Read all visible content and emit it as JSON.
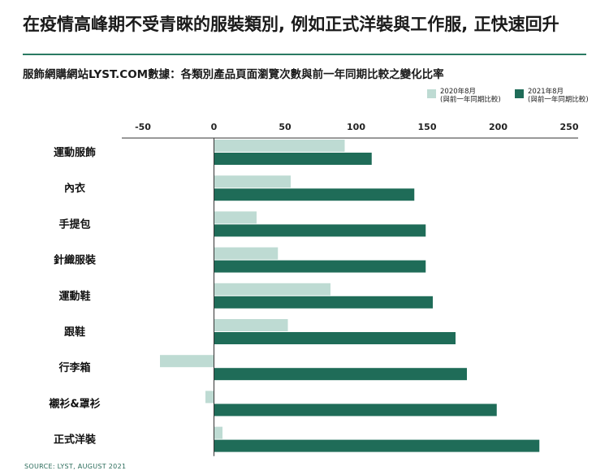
{
  "header": {
    "title": "在疫情高峰期不受青睞的服裝類別, 例如正式洋裝與工作服, 正快速回升",
    "subtitle": "服飾網購網站LYST.COM數據：各類別產品頁面瀏覽次數與前一年同期比較之變化比率"
  },
  "footer": {
    "source": "SOURCE: LYST, AUGUST 2021"
  },
  "colors": {
    "accent": "#2a7a62",
    "series_2020": "#bedbd3",
    "series_2021": "#1f6c58"
  },
  "chart_data": {
    "type": "bar",
    "orientation": "horizontal",
    "title": "",
    "xlabel": "",
    "ylabel": "",
    "xlim": [
      -50,
      250
    ],
    "xticks": [
      -50,
      0,
      50,
      100,
      150,
      200,
      250
    ],
    "xtick_labels": [
      "-50",
      "0",
      "50",
      "100",
      "150",
      "200",
      "250"
    ],
    "categories": [
      "運動服飾",
      "內衣",
      "手提包",
      "針織服裝",
      "運動鞋",
      "跟鞋",
      "行李箱",
      "襯衫&罩衫",
      "正式洋裝"
    ],
    "series": [
      {
        "name": "2020年8月",
        "legend_note": "(與前一年同期比較)",
        "values": [
          92,
          54,
          30,
          45,
          82,
          52,
          -38,
          -6,
          6
        ]
      },
      {
        "name": "2021年8月",
        "legend_note": "(與前一年同期比較)",
        "values": [
          111,
          141,
          149,
          149,
          154,
          170,
          178,
          199,
          229
        ]
      }
    ],
    "grid": false,
    "legend_position": "top-right"
  }
}
